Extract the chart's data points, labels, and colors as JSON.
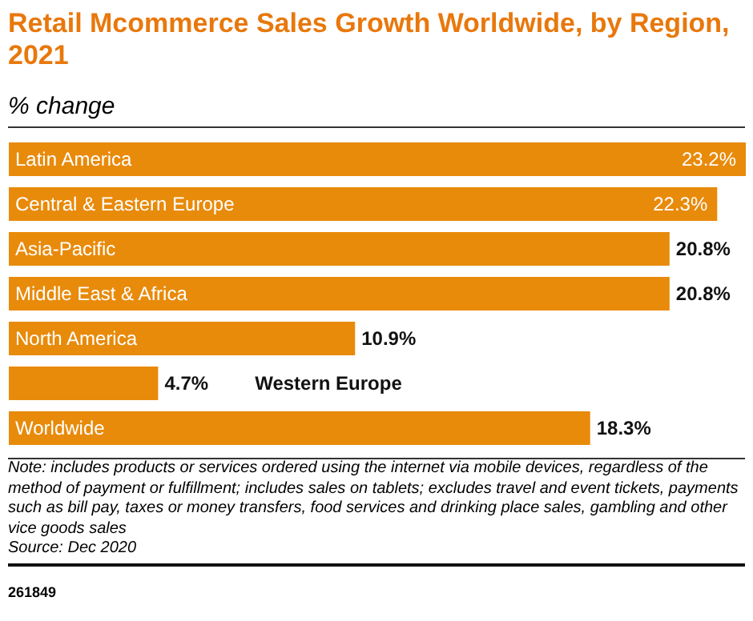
{
  "chart_data": {
    "type": "bar",
    "orientation": "horizontal",
    "title": "Retail Mcommerce Sales Growth Worldwide, by Region, 2021",
    "subtitle": "% change",
    "categories": [
      "Latin America",
      "Central & Eastern Europe",
      "Asia-Pacific",
      "Middle East & Africa",
      "North America",
      "Western Europe",
      "Worldwide"
    ],
    "values": [
      23.2,
      22.3,
      20.8,
      20.8,
      10.9,
      4.7,
      18.3
    ],
    "value_labels": [
      "23.2%",
      "22.3%",
      "20.8%",
      "20.8%",
      "10.9%",
      "4.7%",
      "18.3%"
    ],
    "color": "#e88a0a",
    "xlim": [
      0,
      23.2
    ],
    "tick_labels": false,
    "grid": false,
    "annotations": [
      "Note: includes products or services ordered using the internet via mobile devices, regardless of the method of payment or fulfillment; includes sales on tablets; excludes travel and event tickets, payments such as bill pay, taxes or money transfers, food services and drinking place sales, gambling and other vice goods sales",
      "Source: Dec 2020",
      "261849"
    ]
  }
}
